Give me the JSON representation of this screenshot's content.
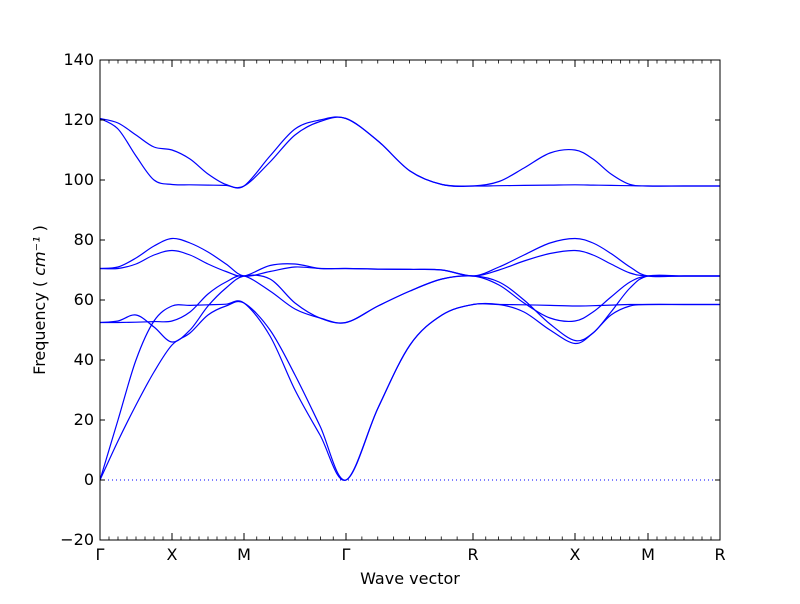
{
  "chart_data": {
    "type": "line",
    "title": "",
    "xlabel": "Wave vector",
    "ylabel": "Frequency",
    "ylabel_unit": "cm⁻¹",
    "ylim": [
      -20,
      140
    ],
    "yticks": [
      -20,
      0,
      20,
      40,
      60,
      80,
      100,
      120,
      140
    ],
    "xlim": [
      0,
      6.2
    ],
    "high_symmetry_points": [
      {
        "label": "Γ",
        "x": 0
      },
      {
        "label": "X",
        "x": 0.72
      },
      {
        "label": "M",
        "x": 1.44
      },
      {
        "label": "Γ",
        "x": 2.46
      },
      {
        "label": "R",
        "x": 3.73
      },
      {
        "label": "X",
        "x": 4.75
      },
      {
        "label": "M",
        "x": 5.48
      },
      {
        "label": "R",
        "x": 6.2
      }
    ],
    "zero_line": {
      "y": 0,
      "style": "dotted"
    },
    "line_color": "#0000ff",
    "grid": false,
    "legend": "none",
    "series": [
      {
        "x": [
          0,
          0.18,
          0.36,
          0.54,
          0.72,
          0.9,
          1.08,
          1.26,
          1.44,
          1.7,
          1.95,
          2.2,
          2.46,
          2.78,
          3.1,
          3.42,
          3.73,
          3.99,
          4.24,
          4.5,
          4.75,
          4.93,
          5.11,
          5.3,
          5.48,
          5.84,
          6.2
        ],
        "values": [
          0,
          13,
          25,
          36,
          45,
          49,
          55,
          58,
          59,
          50,
          35,
          18,
          0,
          24,
          45,
          55,
          58.5,
          58.5,
          56,
          50,
          45.5,
          49,
          55,
          58,
          58.5,
          58.5,
          58.5
        ]
      },
      {
        "x": [
          0,
          0.18,
          0.36,
          0.54,
          0.72,
          0.9,
          1.08,
          1.26,
          1.44,
          1.7,
          1.95,
          2.2,
          2.46,
          2.78,
          3.1,
          3.42,
          3.73,
          3.99,
          4.24,
          4.5,
          4.75,
          4.93,
          5.11,
          5.3,
          5.48,
          5.84,
          6.2
        ],
        "values": [
          0,
          20,
          40,
          53,
          58,
          58.2,
          58.4,
          58.6,
          59,
          48,
          30,
          15,
          0,
          24,
          45,
          55,
          58.5,
          58.5,
          58.4,
          58.2,
          58,
          58.1,
          58.3,
          58.5,
          58.5,
          58.5,
          58.5
        ]
      },
      {
        "x": [
          0,
          0.18,
          0.36,
          0.54,
          0.72,
          0.9,
          1.08,
          1.26,
          1.44,
          1.7,
          1.95,
          2.2,
          2.46,
          2.78,
          3.1,
          3.42,
          3.73,
          3.99,
          4.24,
          4.5,
          4.75,
          4.93,
          5.11,
          5.3,
          5.48,
          5.84,
          6.2
        ],
        "values": [
          52.5,
          53,
          55,
          51,
          46,
          50,
          58,
          64,
          68,
          67,
          59,
          54,
          52.5,
          58,
          63,
          67,
          68,
          66,
          60,
          52,
          46.5,
          49,
          56,
          64,
          68,
          68,
          68
        ]
      },
      {
        "x": [
          0,
          0.18,
          0.36,
          0.54,
          0.72,
          0.9,
          1.08,
          1.26,
          1.44,
          1.7,
          1.95,
          2.2,
          2.46,
          2.78,
          3.1,
          3.42,
          3.73,
          3.99,
          4.24,
          4.5,
          4.75,
          4.93,
          5.11,
          5.3,
          5.48,
          5.84,
          6.2
        ],
        "values": [
          52.5,
          52.5,
          52.6,
          52.8,
          53,
          56,
          62,
          66,
          68,
          63,
          57,
          54,
          52.5,
          58,
          63,
          67,
          68,
          65,
          59,
          54,
          53,
          56,
          61,
          66,
          68,
          68,
          68
        ]
      },
      {
        "x": [
          0,
          0.18,
          0.36,
          0.54,
          0.72,
          0.9,
          1.08,
          1.26,
          1.44,
          1.7,
          1.95,
          2.2,
          2.46,
          2.78,
          3.1,
          3.42,
          3.73,
          3.99,
          4.24,
          4.5,
          4.75,
          4.93,
          5.11,
          5.3,
          5.48,
          5.84,
          6.2
        ],
        "values": [
          70.5,
          70.5,
          72,
          75,
          76.5,
          75,
          72,
          69.5,
          68,
          71.5,
          72,
          70.5,
          70.5,
          70.3,
          70.2,
          70,
          68,
          70,
          73,
          75.5,
          76.5,
          75,
          72,
          69,
          68,
          68,
          68
        ]
      },
      {
        "x": [
          0,
          0.18,
          0.36,
          0.54,
          0.72,
          0.9,
          1.08,
          1.26,
          1.44,
          1.7,
          1.95,
          2.2,
          2.46,
          2.78,
          3.1,
          3.42,
          3.73,
          3.99,
          4.24,
          4.5,
          4.75,
          4.93,
          5.11,
          5.3,
          5.48,
          5.84,
          6.2
        ],
        "values": [
          70.5,
          71,
          74,
          78,
          80.5,
          79,
          76,
          72,
          68,
          69.5,
          71,
          70.5,
          70.5,
          70.3,
          70.2,
          70,
          68,
          71,
          75,
          79,
          80.5,
          79,
          75.5,
          71,
          68,
          68,
          68
        ]
      },
      {
        "x": [
          0,
          0.18,
          0.36,
          0.54,
          0.72,
          0.9,
          1.08,
          1.26,
          1.44,
          1.7,
          1.95,
          2.2,
          2.46,
          2.78,
          3.1,
          3.42,
          3.73,
          3.99,
          4.24,
          4.5,
          4.75,
          4.93,
          5.11,
          5.3,
          5.48,
          5.84,
          6.2
        ],
        "values": [
          120.5,
          119,
          115,
          111,
          110,
          107,
          102,
          98.5,
          98,
          106,
          115,
          119.5,
          120.5,
          113,
          103,
          98.5,
          98,
          99.5,
          104,
          109,
          110,
          107,
          102,
          98.5,
          98,
          98,
          98
        ]
      },
      {
        "x": [
          0,
          0.18,
          0.36,
          0.54,
          0.72,
          0.9,
          1.08,
          1.26,
          1.44,
          1.7,
          1.95,
          2.2,
          2.46,
          2.78,
          3.1,
          3.42,
          3.73,
          3.99,
          4.24,
          4.5,
          4.75,
          4.93,
          5.11,
          5.3,
          5.48,
          5.84,
          6.2
        ],
        "values": [
          120.5,
          117,
          108,
          100,
          98.5,
          98.4,
          98.3,
          98.2,
          98,
          108,
          117,
          120,
          120.5,
          113,
          103,
          98.5,
          98,
          98.1,
          98.2,
          98.3,
          98.4,
          98.3,
          98.2,
          98.1,
          98,
          98,
          98
        ]
      }
    ]
  }
}
